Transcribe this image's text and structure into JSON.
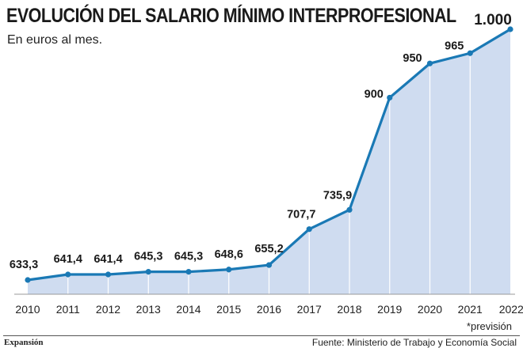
{
  "header": {
    "title": "EVOLUCIÓN DEL SALARIO MÍNIMO INTERPROFESIONAL",
    "subtitle": "En euros al mes."
  },
  "footer": {
    "note": "*previsión",
    "brand": "Expansión",
    "source": "Fuente: Ministerio de Trabajo y Economía Social"
  },
  "colors": {
    "line": "#1a79b5",
    "area": "#cfdcf0",
    "gridline": "#ffffff"
  },
  "chart_data": {
    "type": "area",
    "title": "EVOLUCIÓN DEL SALARIO MÍNIMO INTERPROFESIONAL",
    "subtitle": "En euros al mes.",
    "xlabel": "",
    "ylabel": "",
    "categories": [
      "2010",
      "2011",
      "2012",
      "2013",
      "2014",
      "2015",
      "2016",
      "2017",
      "2018",
      "2019",
      "2020",
      "2021",
      "2022*"
    ],
    "series": [
      {
        "values": [
          633.3,
          641.4,
          641.4,
          645.3,
          645.3,
          648.6,
          655.2,
          707.7,
          735.9,
          900,
          950,
          965,
          1000
        ],
        "labels": [
          "633,3",
          "641,4",
          "641,4",
          "645,3",
          "645,3",
          "648,6",
          "655,2",
          "707,7",
          "735,9",
          "900",
          "950",
          "965",
          "1.000"
        ]
      }
    ],
    "ylim": [
      600,
      1000
    ],
    "grid": "vertical",
    "legend": "none"
  }
}
